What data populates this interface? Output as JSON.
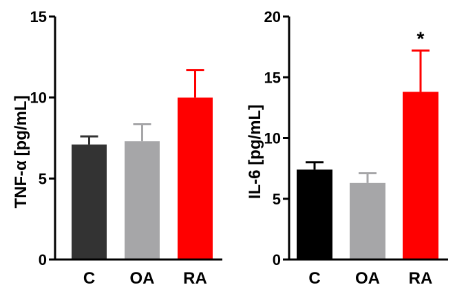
{
  "chart_data": [
    {
      "type": "bar",
      "categories": [
        "C",
        "OA",
        "RA"
      ],
      "values": [
        7.1,
        7.3,
        10.0
      ],
      "errors": [
        0.5,
        1.05,
        1.7
      ],
      "colors": [
        "#333333",
        "#a6a6a8",
        "#ff0000"
      ],
      "title": "",
      "xlabel": "",
      "ylabel": "TNF-α [pg/mL]",
      "ylim": [
        0,
        15
      ],
      "yticks": [
        "0",
        "5",
        "10",
        "15"
      ],
      "significance": [
        "",
        "",
        ""
      ],
      "grid": false
    },
    {
      "type": "bar",
      "categories": [
        "C",
        "OA",
        "RA"
      ],
      "values": [
        7.4,
        6.3,
        13.8
      ],
      "errors": [
        0.6,
        0.8,
        3.4
      ],
      "colors": [
        "#000000",
        "#a6a6a8",
        "#ff0000"
      ],
      "title": "",
      "xlabel": "",
      "ylabel": "IL-6 [pg/mL]",
      "ylim": [
        0,
        20
      ],
      "yticks": [
        "0",
        "5",
        "10",
        "15",
        "20"
      ],
      "significance": [
        "",
        "",
        "*"
      ],
      "grid": false
    }
  ]
}
